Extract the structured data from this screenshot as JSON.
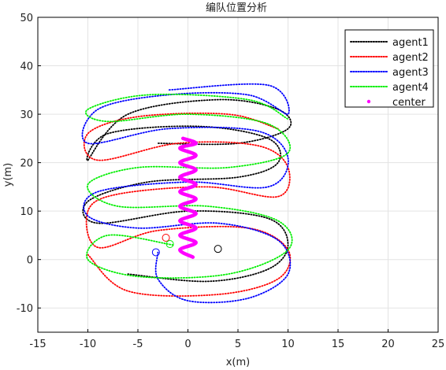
{
  "chart_data": {
    "type": "line",
    "title": "编队位置分析",
    "xlabel": "x(m)",
    "ylabel": "y(m)",
    "xlim": [
      -15,
      25
    ],
    "ylim": [
      -15,
      50
    ],
    "x_ticks": [
      -15,
      -10,
      -5,
      0,
      5,
      10,
      15,
      20,
      25
    ],
    "y_ticks": [
      -10,
      0,
      10,
      20,
      30,
      40,
      50
    ],
    "grid": true,
    "legend_position": "top-right",
    "series": [
      {
        "name": "agent1",
        "style": "dotted",
        "color": "#000000",
        "points": [
          [
            -6,
            -3
          ],
          [
            2,
            -4.5
          ],
          [
            8,
            -2
          ],
          [
            10,
            3
          ],
          [
            8,
            8.5
          ],
          [
            0,
            10
          ],
          [
            -9,
            7.5
          ],
          [
            -10,
            12
          ],
          [
            -4,
            16
          ],
          [
            5,
            17
          ],
          [
            9,
            20
          ],
          [
            8,
            25
          ],
          [
            1,
            27.5
          ],
          [
            -8,
            26
          ],
          [
            -10,
            20.5
          ],
          [
            -6,
            30
          ],
          [
            3,
            33
          ],
          [
            9,
            31
          ],
          [
            10,
            27
          ],
          [
            5,
            24
          ],
          [
            -3,
            24
          ]
        ],
        "start": [
          3,
          2.2
        ]
      },
      {
        "name": "agent2",
        "style": "dotted",
        "color": "#ff0000",
        "points": [
          [
            -10,
            1
          ],
          [
            -6,
            -6.5
          ],
          [
            3,
            -7.2
          ],
          [
            9,
            -4
          ],
          [
            10,
            2
          ],
          [
            6,
            6.5
          ],
          [
            -3,
            6
          ],
          [
            -9,
            2.5
          ],
          [
            -10,
            10
          ],
          [
            -7,
            13.5
          ],
          [
            2,
            15
          ],
          [
            9,
            13
          ],
          [
            10,
            19
          ],
          [
            7,
            23.5
          ],
          [
            -1,
            24
          ],
          [
            -9,
            20.5
          ],
          [
            -10,
            26
          ],
          [
            -5,
            29.5
          ],
          [
            4,
            30
          ],
          [
            9,
            27
          ]
        ],
        "start": [
          -2.2,
          4.5
        ]
      },
      {
        "name": "agent3",
        "style": "dotted",
        "color": "#0000ff",
        "points": [
          [
            -3,
            1.5
          ],
          [
            -3,
            -4
          ],
          [
            0,
            -8.5
          ],
          [
            6,
            -8
          ],
          [
            10,
            -3
          ],
          [
            9,
            4
          ],
          [
            3,
            7.5
          ],
          [
            -5,
            6.5
          ],
          [
            -10,
            9
          ],
          [
            -9,
            14
          ],
          [
            0,
            16
          ],
          [
            8,
            15
          ],
          [
            10,
            21
          ],
          [
            7,
            26.5
          ],
          [
            -2,
            27
          ],
          [
            -10,
            24
          ],
          [
            -9,
            31
          ],
          [
            -2,
            34
          ],
          [
            6,
            34
          ],
          [
            10,
            30
          ],
          [
            8,
            36
          ],
          [
            -2,
            35
          ]
        ],
        "start": [
          -3.2,
          1.5
        ]
      },
      {
        "name": "agent4",
        "style": "dotted",
        "color": "#00ee00",
        "points": [
          [
            -1.5,
            3
          ],
          [
            -8,
            5
          ],
          [
            -10,
            0
          ],
          [
            -5,
            -3.5
          ],
          [
            4,
            -3
          ],
          [
            10,
            2
          ],
          [
            9,
            8
          ],
          [
            2,
            11
          ],
          [
            -7,
            11
          ],
          [
            -10,
            15.5
          ],
          [
            -5,
            19
          ],
          [
            4,
            19
          ],
          [
            10,
            22
          ],
          [
            8,
            28
          ],
          [
            0,
            30
          ],
          [
            -8,
            28.5
          ],
          [
            -10,
            31
          ],
          [
            -4,
            34
          ],
          [
            6,
            33
          ],
          [
            10,
            29
          ]
        ],
        "start": [
          -1.8,
          3.2
        ]
      },
      {
        "name": "center",
        "style": "marker",
        "color": "#ff00ff",
        "points": [
          [
            0.5,
            0.5
          ],
          [
            -0.8,
            2
          ],
          [
            0.8,
            3.5
          ],
          [
            -0.8,
            5
          ],
          [
            0.8,
            6.5
          ],
          [
            -0.8,
            8
          ],
          [
            0.8,
            9.5
          ],
          [
            -0.8,
            11
          ],
          [
            0.8,
            12.5
          ],
          [
            -0.8,
            14
          ],
          [
            0.8,
            15.5
          ],
          [
            -0.8,
            17
          ],
          [
            0.8,
            18.5
          ],
          [
            -0.8,
            20
          ],
          [
            0.8,
            21.5
          ],
          [
            -0.8,
            23
          ],
          [
            0.8,
            24
          ],
          [
            -0.5,
            25
          ]
        ]
      }
    ]
  }
}
